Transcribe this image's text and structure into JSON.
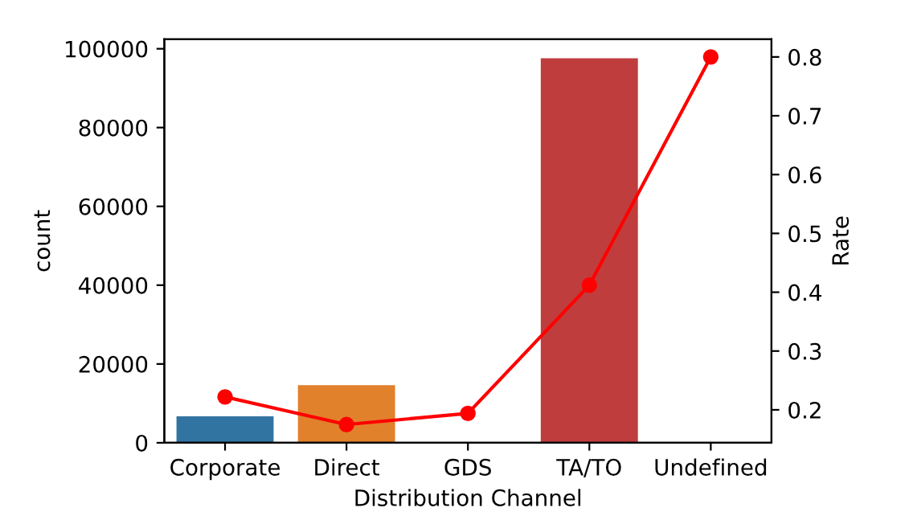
{
  "chart_data": {
    "type": "bar",
    "xlabel": "Distribution Channel",
    "ylabel": "count",
    "y2label": "Rate",
    "categories": [
      "Corporate",
      "Direct",
      "GDS",
      "TA/TO",
      "Undefined"
    ],
    "series": [
      {
        "colors": [
          "#3274a1",
          "#e1812c",
          "#3a923a",
          "#c03d3e",
          "#9372b2"
        ],
        "values": [
          6700,
          14600,
          200,
          97600,
          0
        ]
      },
      {
        "type": "line",
        "axis": "y2",
        "color": "#ff0000",
        "marker": "circle",
        "values": [
          0.222,
          0.175,
          0.194,
          0.412,
          0.8
        ]
      }
    ],
    "ylim": [
      0,
      102400
    ],
    "yticks": [
      0,
      20000,
      40000,
      60000,
      80000,
      100000
    ],
    "y2lim": [
      0.144,
      0.83
    ],
    "y2ticks": [
      0.2,
      0.3,
      0.4,
      0.5,
      0.6,
      0.7,
      0.8
    ],
    "grid": false
  }
}
